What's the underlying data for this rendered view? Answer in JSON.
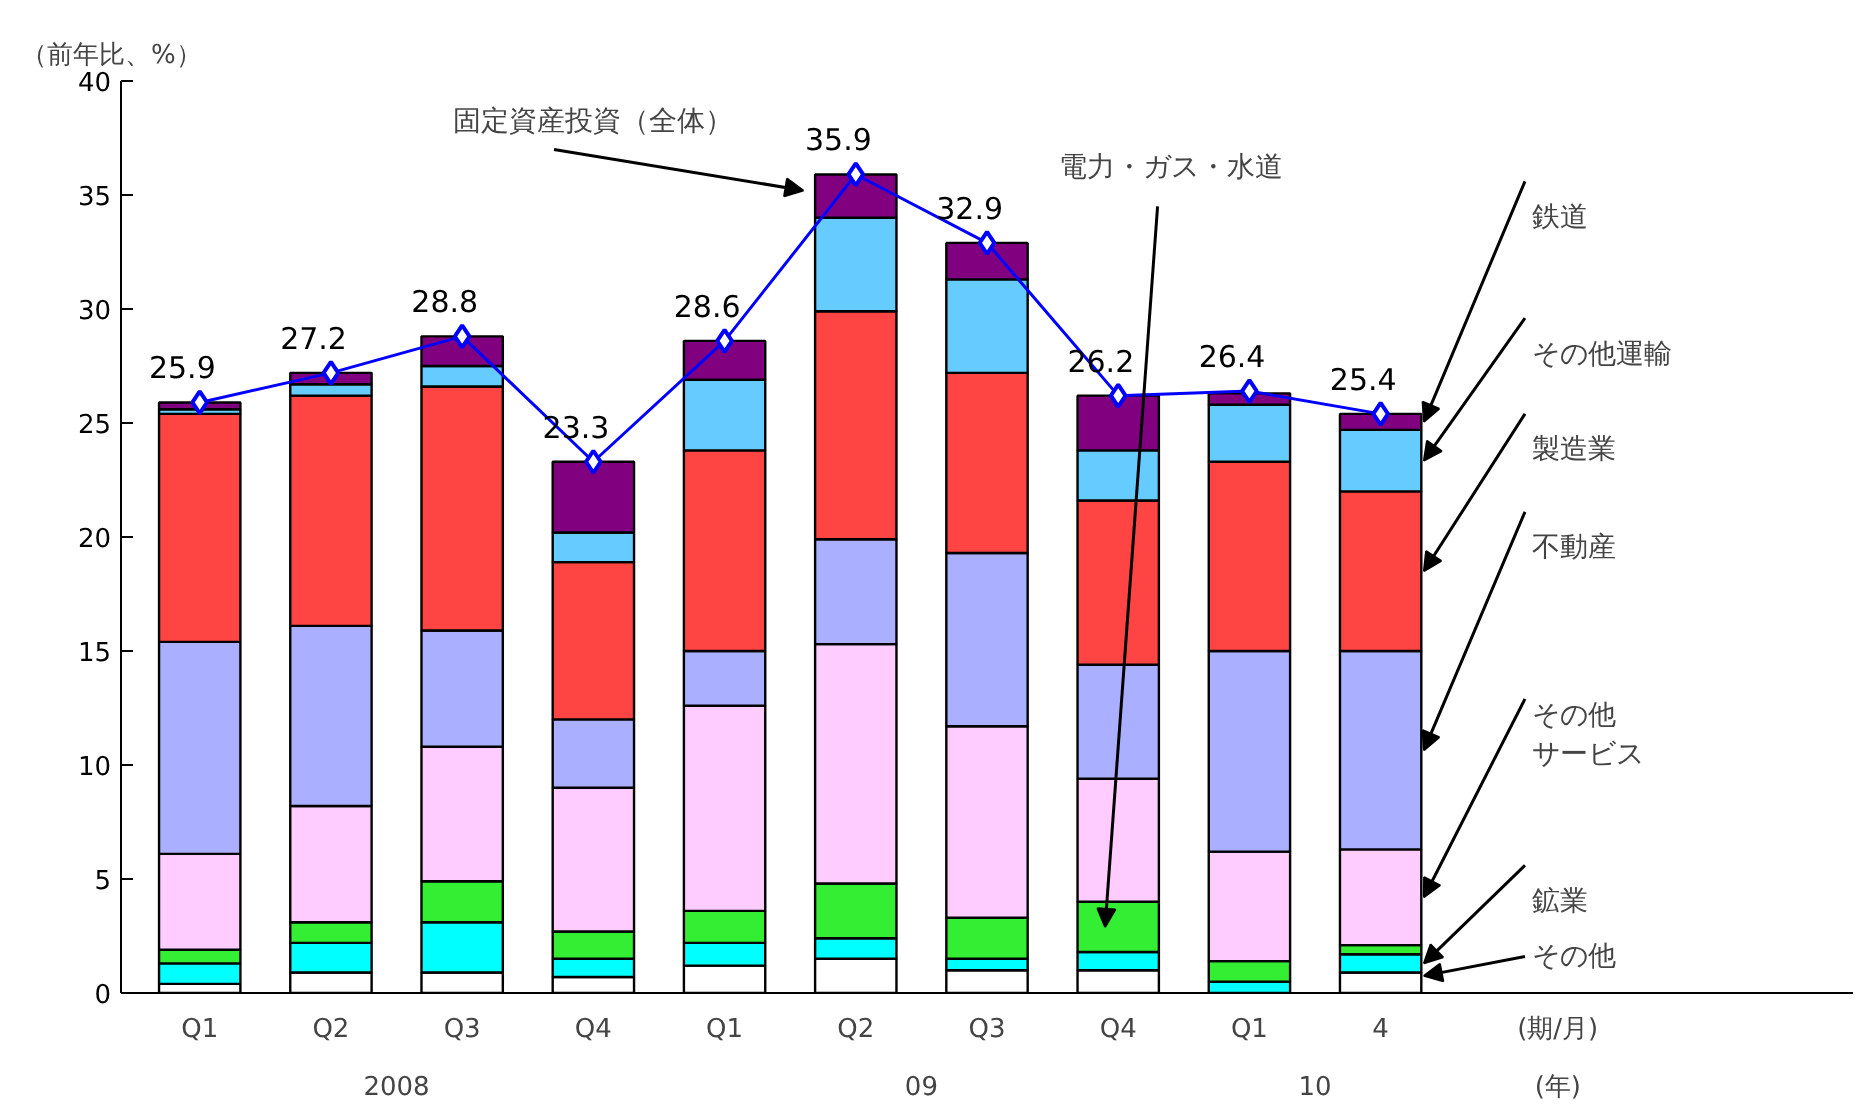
{
  "chart_data": {
    "type": "bar",
    "stacked": true,
    "ylabel": "（前年比、%）",
    "categories": [
      "Q1",
      "Q2",
      "Q3",
      "Q4",
      "Q1",
      "Q2",
      "Q3",
      "Q4",
      "Q1",
      "4"
    ],
    "ylim": [
      0,
      40
    ],
    "yticks": [
      0,
      5,
      10,
      15,
      20,
      25,
      30,
      35,
      40
    ],
    "grid": false,
    "legend": "right",
    "series": [
      {
        "name": "その他",
        "color": "#ffffff",
        "values": [
          0.4,
          0.9,
          0.9,
          0.7,
          1.2,
          1.5,
          1.0,
          1.0,
          null,
          0.9
        ]
      },
      {
        "name": "鉱業",
        "color": "#00ffff",
        "values": [
          0.9,
          1.3,
          2.2,
          0.8,
          1.0,
          0.9,
          0.5,
          0.8,
          0.5,
          0.8
        ]
      },
      {
        "name": "電力・ガス・水道",
        "color": "#33ee33",
        "values": [
          0.6,
          0.9,
          1.8,
          1.2,
          1.4,
          2.4,
          1.8,
          2.2,
          0.9,
          0.4
        ]
      },
      {
        "name": "その他サービス",
        "color": "#ffccff",
        "values": [
          4.2,
          5.1,
          5.9,
          6.3,
          9.0,
          10.5,
          8.4,
          5.4,
          4.8,
          4.2
        ]
      },
      {
        "name": "不動産",
        "color": "#aab0ff",
        "values": [
          9.3,
          7.9,
          5.1,
          3.0,
          2.4,
          4.6,
          7.6,
          5.0,
          8.8,
          8.7
        ]
      },
      {
        "name": "製造業",
        "color": "#ff4444",
        "values": [
          10.0,
          10.1,
          10.7,
          6.9,
          8.8,
          10.0,
          7.9,
          7.2,
          8.3,
          7.0
        ]
      },
      {
        "name": "その他運輸",
        "color": "#66ccff",
        "values": [
          0.2,
          0.5,
          0.9,
          1.3,
          3.1,
          4.1,
          4.1,
          2.2,
          2.5,
          2.7
        ]
      },
      {
        "name": "鉄道",
        "color": "#800080",
        "values": [
          0.3,
          0.5,
          1.3,
          3.1,
          1.7,
          1.9,
          1.6,
          2.4,
          0.5,
          0.7
        ]
      },
      {
        "name": "固定資産投資（全体）",
        "type": "line",
        "color": "#0000ff",
        "marker": "diamond",
        "data_labels": true,
        "values": [
          25.9,
          27.2,
          28.8,
          23.3,
          28.6,
          35.9,
          32.9,
          26.2,
          26.4,
          25.4
        ]
      }
    ],
    "annotations": [
      "2008",
      "09",
      "10",
      "(期/月)",
      "(年)"
    ]
  }
}
